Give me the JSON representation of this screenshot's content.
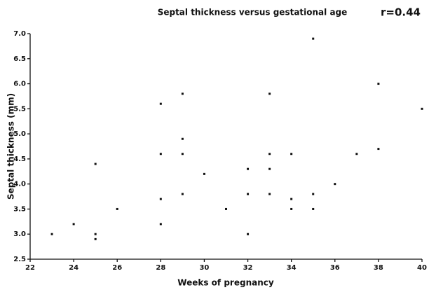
{
  "chart_data": {
    "type": "scatter",
    "title": "Septal thickness versus gestational age",
    "annotation": "r=0.44",
    "x_label": "Weeks of pregnancy",
    "y_label": "Septal thickness (mm)",
    "color": "#111111",
    "x": [
      23,
      24,
      25,
      25,
      25,
      26,
      28,
      28,
      28,
      28,
      29,
      29,
      29,
      29,
      30,
      31,
      32,
      32,
      32,
      33,
      33,
      33,
      33,
      34,
      34,
      34,
      35,
      35,
      35,
      36,
      37,
      38,
      38,
      40
    ],
    "values": [
      3.0,
      3.2,
      4.4,
      3.0,
      2.9,
      3.5,
      5.6,
      4.6,
      3.7,
      3.2,
      5.8,
      4.9,
      4.6,
      3.8,
      4.2,
      3.5,
      4.3,
      3.8,
      3.0,
      5.8,
      4.6,
      4.3,
      3.8,
      4.6,
      3.7,
      3.5,
      6.9,
      3.8,
      3.5,
      4.0,
      4.6,
      6.0,
      4.7,
      5.5
    ],
    "xlim": [
      22,
      40
    ],
    "xticks": [
      22,
      24,
      26,
      28,
      30,
      32,
      34,
      36,
      38,
      40
    ],
    "ylim": [
      2.5,
      7.0
    ],
    "yticks": [
      2.5,
      {
        "value": 3,
        "label": "3.0"
      },
      3.5,
      {
        "value": 4,
        "label": "4.0"
      },
      4.5,
      {
        "value": 5,
        "label": "5.0"
      },
      5.5,
      {
        "value": 6,
        "label": "6.0"
      },
      6.5,
      {
        "value": 7,
        "label": "7.0"
      }
    ]
  }
}
